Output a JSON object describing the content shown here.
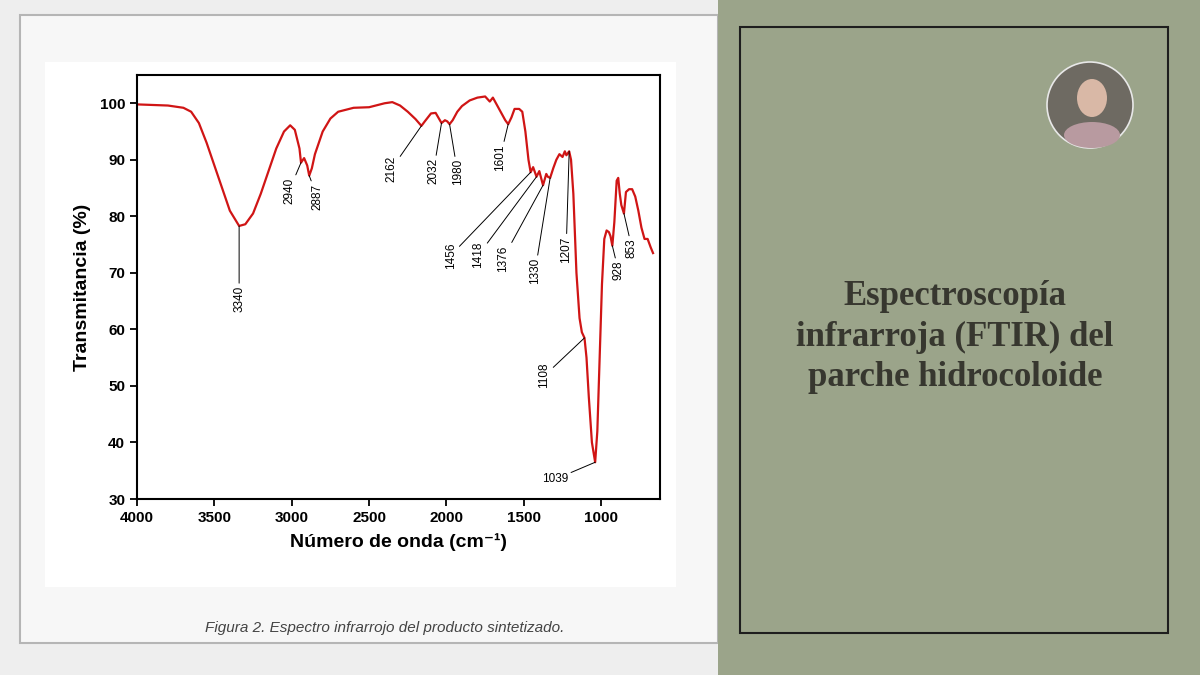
{
  "chart_data": {
    "type": "line",
    "title": "Espectroscopía infrarroja (FTIR) del parche hidrocoloide",
    "caption": "Figura 2. Espectro infrarrojo del producto sintetizado.",
    "x_label": "Número de onda (cm⁻¹)",
    "y_label": "Transmitancia (%)",
    "color": "#d01515",
    "xlim": [
      4000,
      620
    ],
    "xticks": [
      4000,
      3500,
      3000,
      2500,
      2000,
      1500,
      1000
    ],
    "ylim": [
      30,
      105
    ],
    "yticks": [
      30,
      40,
      50,
      60,
      70,
      80,
      90,
      100
    ],
    "x": [
      4000,
      3900,
      3800,
      3700,
      3650,
      3600,
      3550,
      3500,
      3450,
      3400,
      3340,
      3300,
      3250,
      3200,
      3150,
      3100,
      3050,
      3010,
      2980,
      2950,
      2940,
      2920,
      2900,
      2887,
      2870,
      2850,
      2800,
      2750,
      2700,
      2600,
      2500,
      2400,
      2350,
      2300,
      2250,
      2200,
      2162,
      2140,
      2100,
      2070,
      2032,
      2010,
      1995,
      1980,
      1960,
      1930,
      1900,
      1850,
      1800,
      1750,
      1720,
      1700,
      1680,
      1650,
      1620,
      1601,
      1580,
      1560,
      1530,
      1510,
      1490,
      1470,
      1456,
      1440,
      1418,
      1400,
      1376,
      1355,
      1345,
      1330,
      1310,
      1290,
      1270,
      1250,
      1235,
      1225,
      1207,
      1195,
      1180,
      1160,
      1140,
      1125,
      1108,
      1095,
      1080,
      1060,
      1039,
      1025,
      1010,
      995,
      980,
      965,
      950,
      940,
      928,
      915,
      900,
      890,
      880,
      870,
      853,
      840,
      820,
      800,
      780,
      760,
      740,
      720,
      700,
      680,
      665
    ],
    "values": [
      99.8,
      99.7,
      99.6,
      99.2,
      98.5,
      96.5,
      93,
      89,
      85,
      81,
      78.3,
      78.6,
      80.5,
      84,
      88,
      92,
      95,
      96.1,
      95.3,
      92,
      89.5,
      90.3,
      89,
      87.2,
      88.5,
      91,
      95,
      97.3,
      98.5,
      99.2,
      99.3,
      100,
      100.2,
      99.6,
      98.5,
      97.2,
      96,
      96.8,
      98.2,
      98.3,
      96.5,
      97,
      96.8,
      96.3,
      97,
      98.5,
      99.5,
      100.5,
      101,
      101.2,
      100.3,
      101,
      100,
      98.5,
      97,
      96.3,
      97.5,
      99,
      99,
      98.5,
      95,
      90,
      87.8,
      88.7,
      87,
      88,
      85.5,
      87.5,
      87,
      86.8,
      88.5,
      90,
      91,
      90.5,
      91.5,
      90.8,
      91.5,
      90,
      84,
      70,
      62,
      59.5,
      58.5,
      55,
      48,
      40,
      36.5,
      42,
      55,
      68,
      76,
      77.5,
      77.2,
      76.5,
      74.8,
      79,
      86.3,
      86.8,
      84,
      82,
      80.5,
      84.3,
      84.8,
      84.8,
      83.5,
      81,
      78,
      76,
      76,
      74.5,
      73.5
    ],
    "annotations": [
      {
        "x": 3340,
        "y": 78.3
      },
      {
        "x": 2940,
        "y": 89.5
      },
      {
        "x": 2887,
        "y": 87.2
      },
      {
        "x": 2162,
        "y": 96
      },
      {
        "x": 2032,
        "y": 96.5
      },
      {
        "x": 1980,
        "y": 96.3
      },
      {
        "x": 1601,
        "y": 96.3
      },
      {
        "x": 1456,
        "y": 87.8
      },
      {
        "x": 1418,
        "y": 87
      },
      {
        "x": 1376,
        "y": 85.5
      },
      {
        "x": 1330,
        "y": 86.8
      },
      {
        "x": 1207,
        "y": 91.5
      },
      {
        "x": 1108,
        "y": 58.5
      },
      {
        "x": 1039,
        "y": 36.5
      },
      {
        "x": 928,
        "y": 74.8
      },
      {
        "x": 853,
        "y": 80.5
      }
    ]
  }
}
